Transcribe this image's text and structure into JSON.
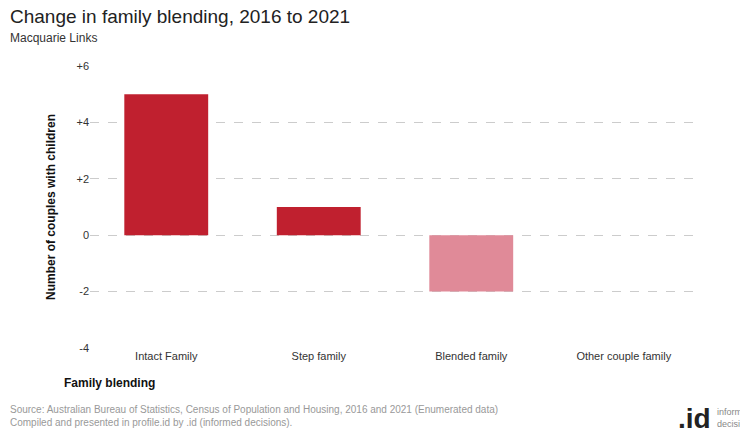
{
  "chart_data": {
    "type": "bar",
    "title": "Change in family blending, 2016 to 2021",
    "subtitle": "Macquarie Links",
    "x_label": "Family blending",
    "y_label": "Number of couples with children",
    "categories": [
      "Intact Family",
      "Step family",
      "Blended family",
      "Other couple family"
    ],
    "values": [
      5,
      1,
      -2,
      0
    ],
    "colors": [
      "#c0202f",
      "#c0202f",
      "#e08a98",
      "#c0202f"
    ],
    "ylim": [
      -4,
      6
    ],
    "yticks": [
      {
        "value": 6,
        "label": "+6"
      },
      {
        "value": 4,
        "label": "+4"
      },
      {
        "value": 2,
        "label": "+2"
      },
      0,
      -2,
      -4
    ],
    "grid": true,
    "source": [
      "Source: Australian Bureau of Statistics, Census of Population and Housing, 2016 and 2021 (Enumerated data)",
      "Compiled and presented in profile.id by .id (informed decisions)."
    ],
    "logo": {
      "mark": ".id",
      "text": [
        "informed",
        "decisions"
      ]
    }
  }
}
